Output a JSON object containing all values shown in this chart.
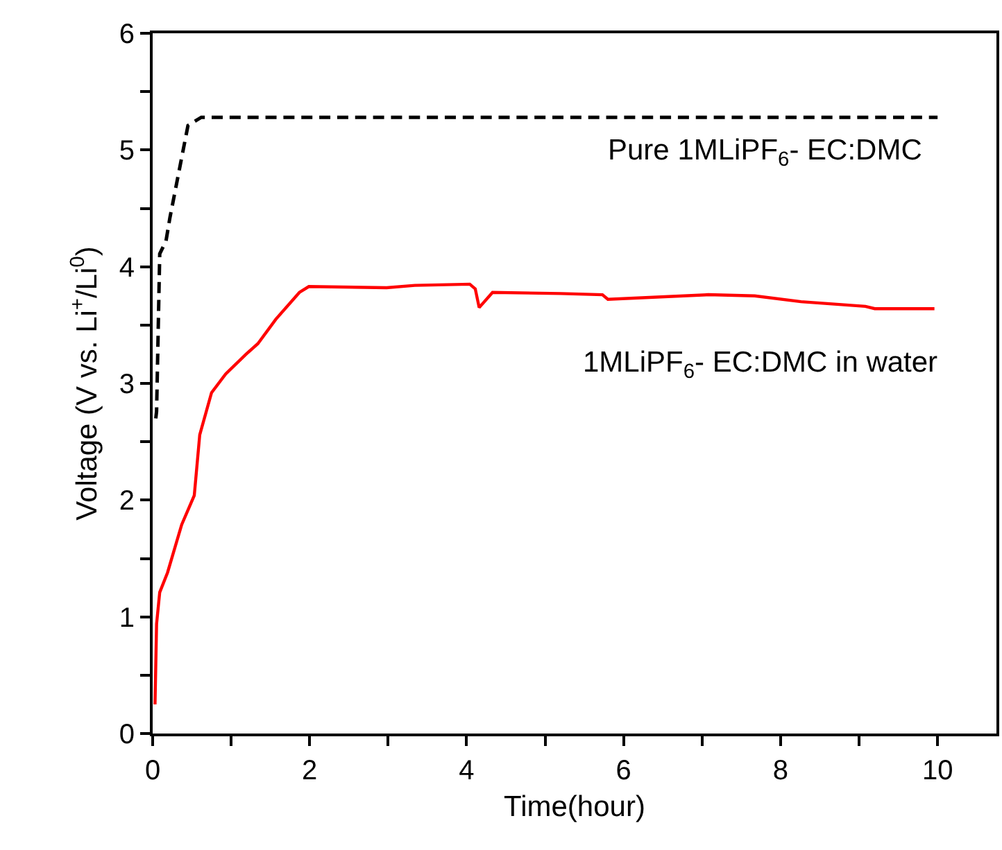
{
  "chart_data": {
    "type": "line",
    "xlabel": "Time(hour)",
    "ylabel": "Voltage (V vs. Li$^{+}$/Li$^{0}$)",
    "xlim": [
      0,
      10.75
    ],
    "ylim": [
      0,
      6
    ],
    "xticks": [
      0,
      {
        "value": 1,
        "label": null
      },
      2,
      {
        "value": 3,
        "label": null
      },
      4,
      {
        "value": 5,
        "label": null
      },
      6,
      {
        "value": 7,
        "label": null
      },
      8,
      {
        "value": 9,
        "label": null
      },
      10
    ],
    "yticks": [
      0,
      {
        "value": 0.5,
        "label": null
      },
      1,
      {
        "value": 1.5,
        "label": null
      },
      2,
      {
        "value": 2.5,
        "label": null
      },
      3,
      {
        "value": 3.5,
        "label": null
      },
      4,
      {
        "value": 4.5,
        "label": null
      },
      5,
      {
        "value": 5.5,
        "label": null
      },
      6
    ],
    "marker": "none",
    "series": [
      {
        "name": "Pure 1MLiPF$_{6}$- EC:DMC",
        "color": "#000000",
        "line_style": "dashed",
        "x": [
          0.04,
          0.05,
          0.09,
          0.17,
          0.22,
          0.45,
          0.62,
          10
        ],
        "values": [
          2.7,
          2.76,
          4.11,
          4.22,
          4.42,
          5.21,
          5.28,
          5.28
        ]
      },
      {
        "name": "1MLiPF$_{6}$- EC:DMC in water",
        "color": "#ff0000",
        "line_style": "solid",
        "x": [
          0.03,
          0.05,
          0.09,
          0.19,
          0.37,
          0.53,
          0.6,
          0.75,
          0.93,
          1.19,
          1.34,
          1.57,
          1.87,
          1.99,
          2.98,
          3.34,
          4.04,
          4.11,
          4.16,
          4.33,
          5.2,
          5.73,
          5.8,
          7.08,
          7.67,
          8.26,
          9.08,
          9.2,
          9.96
        ],
        "values": [
          0.25,
          0.94,
          1.21,
          1.38,
          1.79,
          2.04,
          2.56,
          2.92,
          3.08,
          3.25,
          3.34,
          3.55,
          3.78,
          3.83,
          3.82,
          3.84,
          3.85,
          3.81,
          3.65,
          3.78,
          3.77,
          3.76,
          3.72,
          3.76,
          3.75,
          3.7,
          3.66,
          3.64,
          3.64
        ]
      }
    ]
  }
}
